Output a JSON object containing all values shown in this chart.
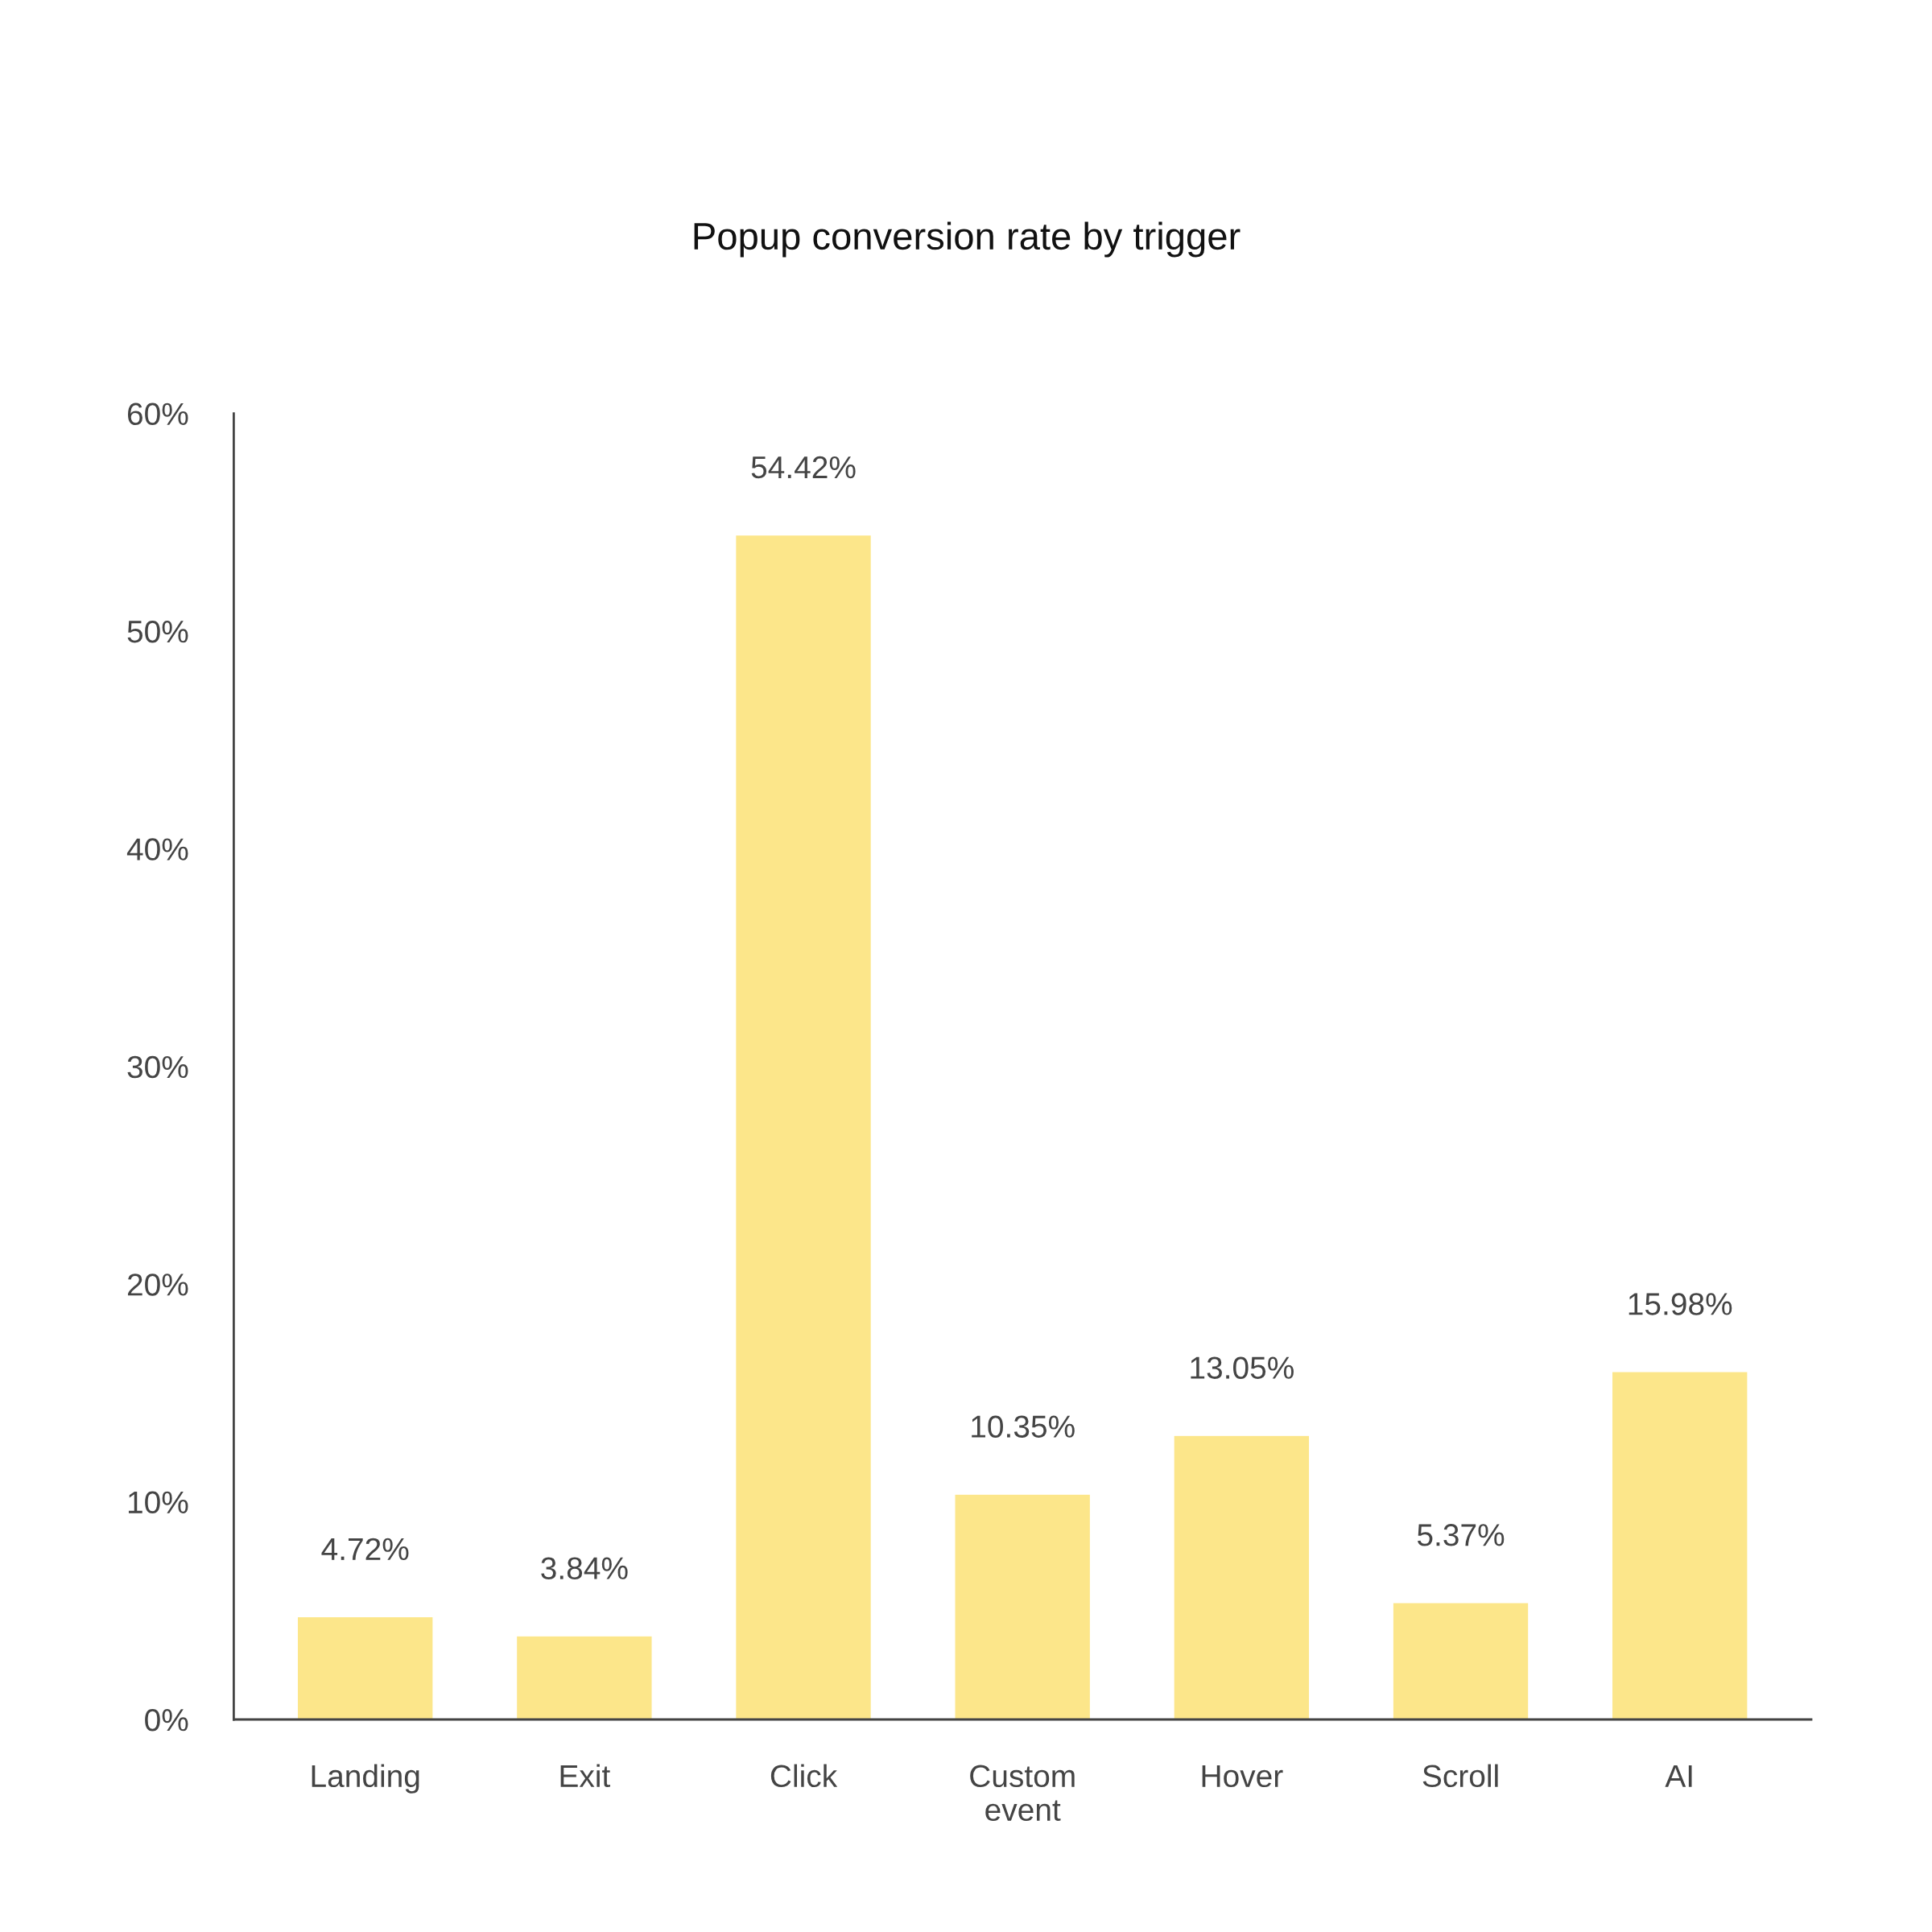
{
  "chart_data": {
    "type": "bar",
    "title": "Popup conversion rate by trigger",
    "categories": [
      "Landing",
      "Exit",
      "Click",
      "Custom\nevent",
      "Hover",
      "Scroll",
      "AI"
    ],
    "values": [
      4.72,
      3.84,
      54.42,
      10.35,
      13.05,
      5.37,
      15.98
    ],
    "color": "#fce68a",
    "value_labels": [
      "4.72%",
      "3.84%",
      "54.42%",
      "10.35%",
      "13.05%",
      "5.37%",
      "15.98%"
    ],
    "ylim": [
      0,
      60
    ],
    "yticks": [
      {
        "value": 0,
        "label": "0%"
      },
      {
        "value": 10,
        "label": "10%"
      },
      {
        "value": 20,
        "label": "20%"
      },
      {
        "value": 30,
        "label": "30%"
      },
      {
        "value": 40,
        "label": "40%"
      },
      {
        "value": 50,
        "label": "50%"
      },
      {
        "value": 60,
        "label": "60%"
      }
    ],
    "grid": false,
    "legend": false
  }
}
